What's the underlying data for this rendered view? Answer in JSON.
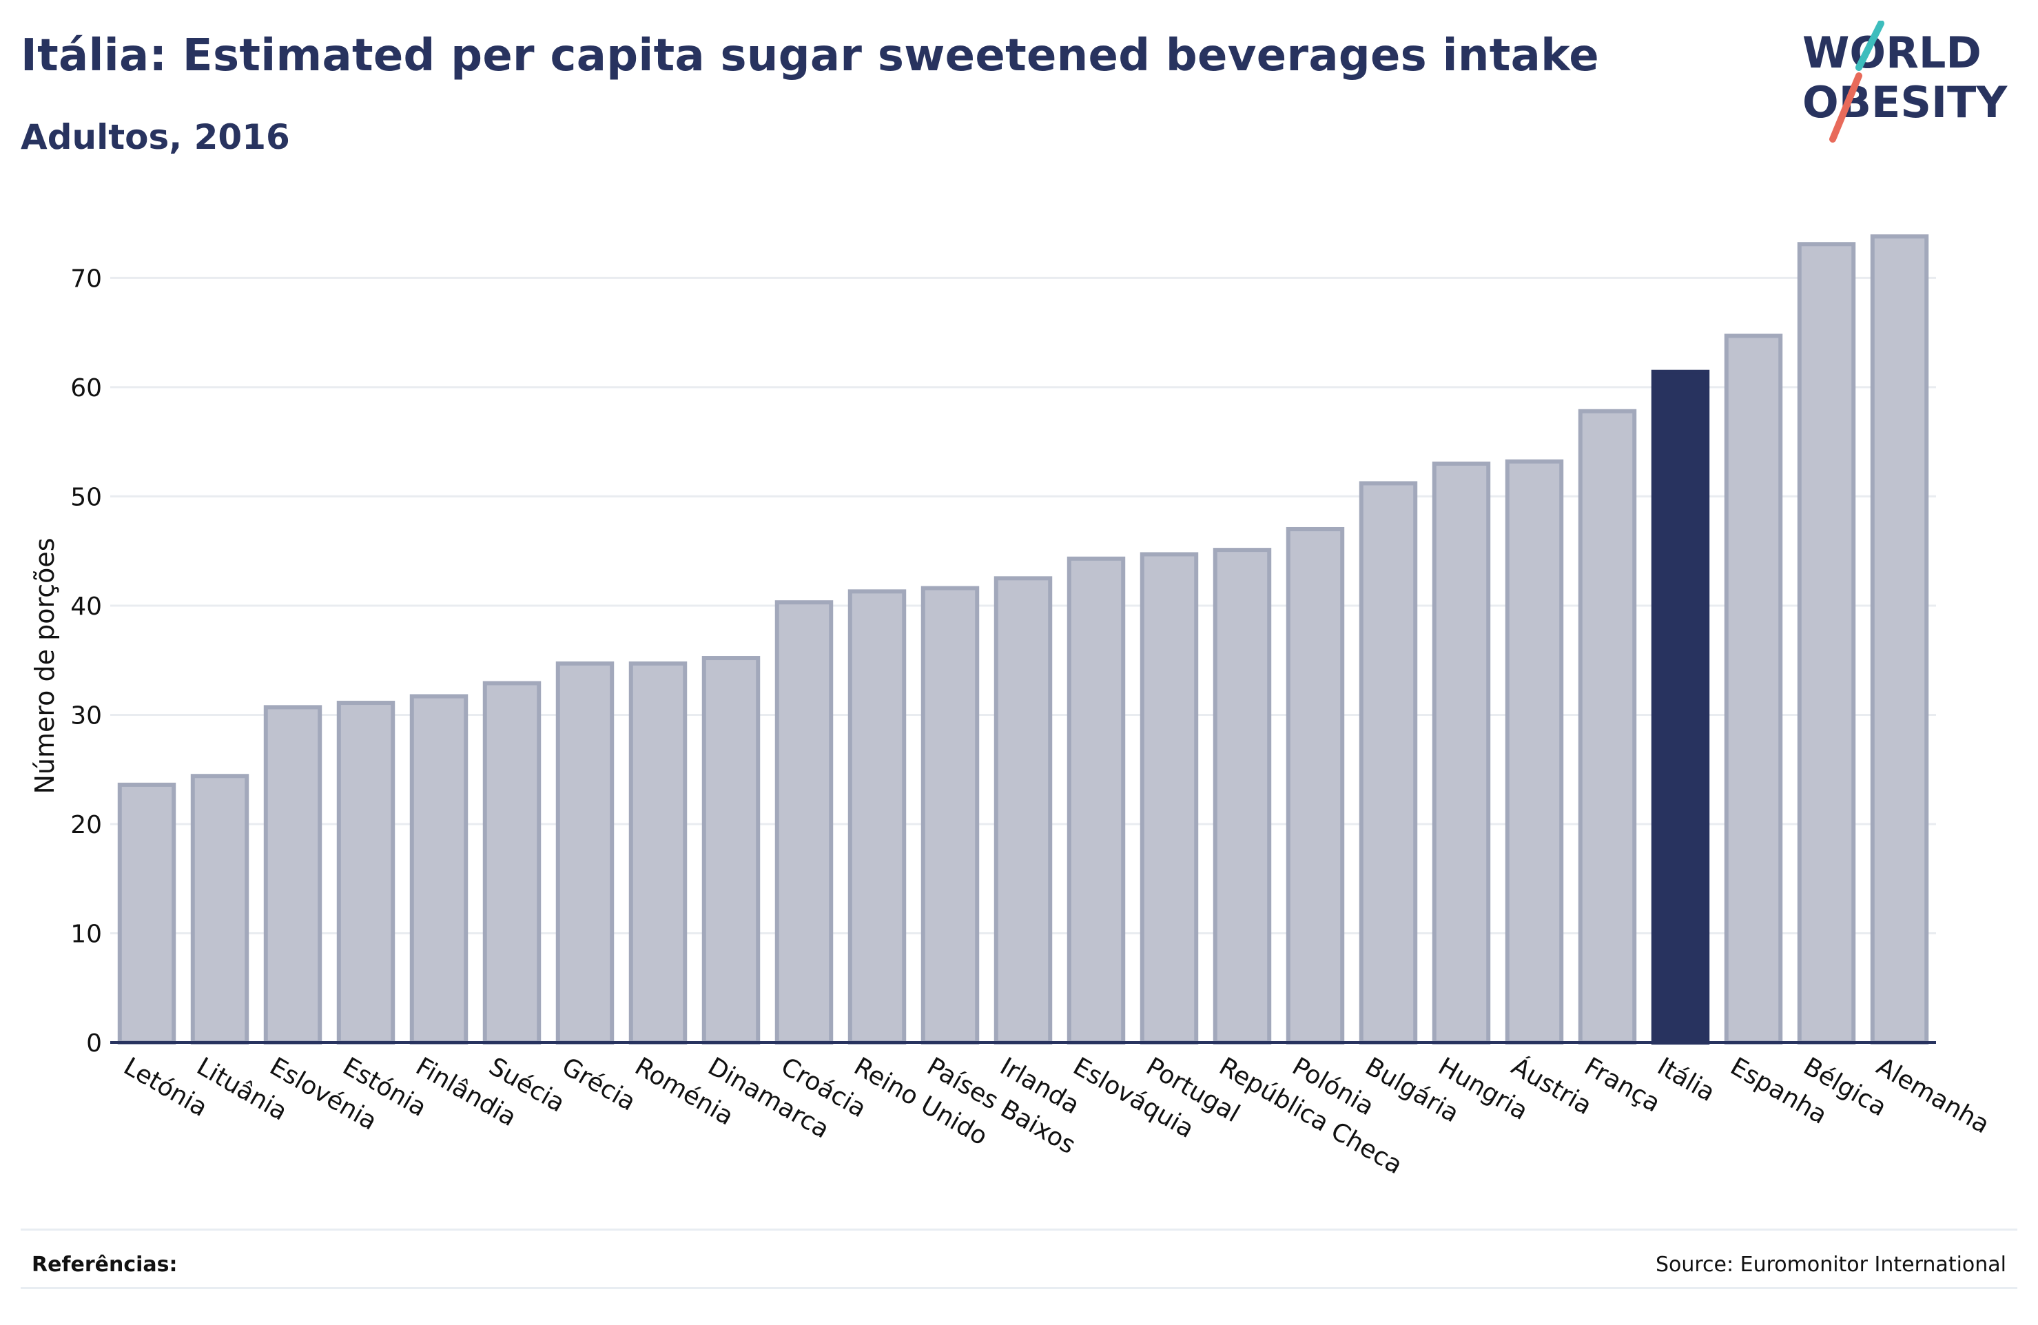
{
  "header": {
    "title": "Itália: Estimated per capita sugar sweetened beverages intake",
    "subtitle": "Adultos, 2016"
  },
  "logo": {
    "line1": "WORLD",
    "line2": "OBESITY"
  },
  "footer": {
    "references_label": "Referências:",
    "source": "Source: Euromonitor International"
  },
  "colors": {
    "highlight": "#28335f",
    "bar_fill": "#bfc2cf",
    "bar_stroke": "#a2a8bb",
    "grid": "#e9ecf0",
    "logo_teal": "#3dbdbd",
    "logo_coral": "#e86a5a"
  },
  "chart_data": {
    "type": "bar",
    "ylabel": "Número de porções",
    "xlabel": "",
    "ylim": [
      0,
      74
    ],
    "yticks": [
      0,
      10,
      20,
      30,
      40,
      50,
      60,
      70
    ],
    "grid": true,
    "highlight_category": "Itália",
    "categories": [
      "Letónia",
      "Lituânia",
      "Eslovénia",
      "Estónia",
      "Finlândia",
      "Suécia",
      "Grécia",
      "Roménia",
      "Dinamarca",
      "Croácia",
      "Reino Unido",
      "Países Baixos",
      "Irlanda",
      "Eslováquia",
      "Portugal",
      "República Checa",
      "Polónia",
      "Bulgária",
      "Hungria",
      "Áustria",
      "França",
      "Itália",
      "Espanha",
      "Bélgica",
      "Alemanha"
    ],
    "values": [
      23.6,
      24.4,
      30.7,
      31.1,
      31.7,
      32.9,
      34.7,
      34.7,
      35.2,
      40.3,
      41.3,
      41.6,
      42.5,
      44.3,
      44.7,
      45.1,
      47.0,
      51.2,
      53.0,
      53.2,
      57.8,
      61.4,
      64.7,
      73.1,
      73.8
    ]
  }
}
